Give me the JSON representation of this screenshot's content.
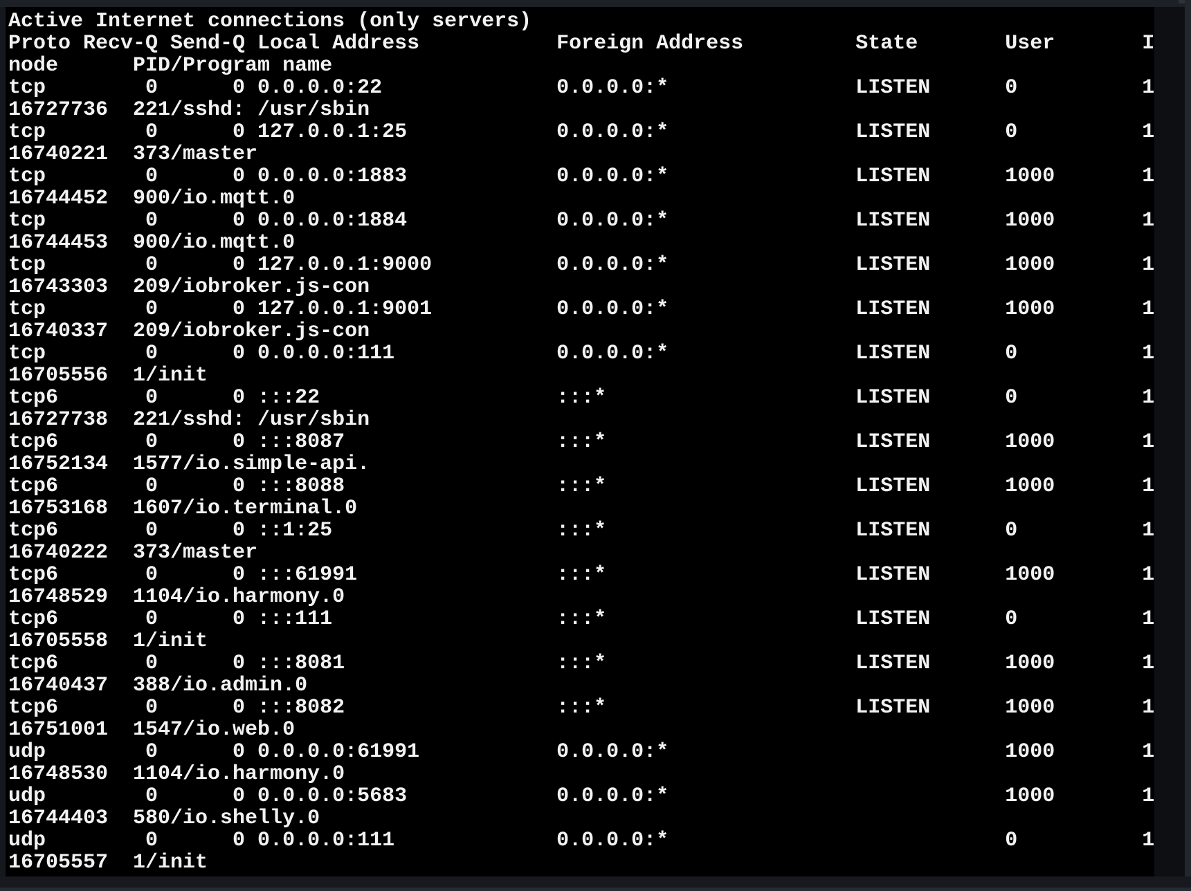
{
  "terminal": {
    "title_line": "Active Internet connections (only servers)",
    "wrap_width": 92,
    "header": {
      "proto": "Proto",
      "recv_q": "Recv-Q",
      "send_q": "Send-Q",
      "local": "Local Address",
      "foreign": "Foreign Address",
      "state": "State",
      "user": "User",
      "inode": "Inode",
      "program": "PID/Program name"
    },
    "rows": [
      {
        "proto": "tcp",
        "recv_q": "0",
        "send_q": "0",
        "local": "0.0.0.0:22",
        "foreign": "0.0.0.0:*",
        "state": "LISTEN",
        "user": "0",
        "inode": "116727736",
        "program": "221/sshd: /usr/sbin"
      },
      {
        "proto": "tcp",
        "recv_q": "0",
        "send_q": "0",
        "local": "127.0.0.1:25",
        "foreign": "0.0.0.0:*",
        "state": "LISTEN",
        "user": "0",
        "inode": "116740221",
        "program": "373/master"
      },
      {
        "proto": "tcp",
        "recv_q": "0",
        "send_q": "0",
        "local": "0.0.0.0:1883",
        "foreign": "0.0.0.0:*",
        "state": "LISTEN",
        "user": "1000",
        "inode": "116744452",
        "program": "900/io.mqtt.0"
      },
      {
        "proto": "tcp",
        "recv_q": "0",
        "send_q": "0",
        "local": "0.0.0.0:1884",
        "foreign": "0.0.0.0:*",
        "state": "LISTEN",
        "user": "1000",
        "inode": "116744453",
        "program": "900/io.mqtt.0"
      },
      {
        "proto": "tcp",
        "recv_q": "0",
        "send_q": "0",
        "local": "127.0.0.1:9000",
        "foreign": "0.0.0.0:*",
        "state": "LISTEN",
        "user": "1000",
        "inode": "116743303",
        "program": "209/iobroker.js-con"
      },
      {
        "proto": "tcp",
        "recv_q": "0",
        "send_q": "0",
        "local": "127.0.0.1:9001",
        "foreign": "0.0.0.0:*",
        "state": "LISTEN",
        "user": "1000",
        "inode": "116740337",
        "program": "209/iobroker.js-con"
      },
      {
        "proto": "tcp",
        "recv_q": "0",
        "send_q": "0",
        "local": "0.0.0.0:111",
        "foreign": "0.0.0.0:*",
        "state": "LISTEN",
        "user": "0",
        "inode": "116705556",
        "program": "1/init"
      },
      {
        "proto": "tcp6",
        "recv_q": "0",
        "send_q": "0",
        "local": ":::22",
        "foreign": ":::*",
        "state": "LISTEN",
        "user": "0",
        "inode": "116727738",
        "program": "221/sshd: /usr/sbin"
      },
      {
        "proto": "tcp6",
        "recv_q": "0",
        "send_q": "0",
        "local": ":::8087",
        "foreign": ":::*",
        "state": "LISTEN",
        "user": "1000",
        "inode": "116752134",
        "program": "1577/io.simple-api."
      },
      {
        "proto": "tcp6",
        "recv_q": "0",
        "send_q": "0",
        "local": ":::8088",
        "foreign": ":::*",
        "state": "LISTEN",
        "user": "1000",
        "inode": "116753168",
        "program": "1607/io.terminal.0"
      },
      {
        "proto": "tcp6",
        "recv_q": "0",
        "send_q": "0",
        "local": "::1:25",
        "foreign": ":::*",
        "state": "LISTEN",
        "user": "0",
        "inode": "116740222",
        "program": "373/master"
      },
      {
        "proto": "tcp6",
        "recv_q": "0",
        "send_q": "0",
        "local": ":::61991",
        "foreign": ":::*",
        "state": "LISTEN",
        "user": "1000",
        "inode": "116748529",
        "program": "1104/io.harmony.0"
      },
      {
        "proto": "tcp6",
        "recv_q": "0",
        "send_q": "0",
        "local": ":::111",
        "foreign": ":::*",
        "state": "LISTEN",
        "user": "0",
        "inode": "116705558",
        "program": "1/init"
      },
      {
        "proto": "tcp6",
        "recv_q": "0",
        "send_q": "0",
        "local": ":::8081",
        "foreign": ":::*",
        "state": "LISTEN",
        "user": "1000",
        "inode": "116740437",
        "program": "388/io.admin.0"
      },
      {
        "proto": "tcp6",
        "recv_q": "0",
        "send_q": "0",
        "local": ":::8082",
        "foreign": ":::*",
        "state": "LISTEN",
        "user": "1000",
        "inode": "116751001",
        "program": "1547/io.web.0"
      },
      {
        "proto": "udp",
        "recv_q": "0",
        "send_q": "0",
        "local": "0.0.0.0:61991",
        "foreign": "0.0.0.0:*",
        "state": "",
        "user": "1000",
        "inode": "116748530",
        "program": "1104/io.harmony.0"
      },
      {
        "proto": "udp",
        "recv_q": "0",
        "send_q": "0",
        "local": "0.0.0.0:5683",
        "foreign": "0.0.0.0:*",
        "state": "",
        "user": "1000",
        "inode": "116744403",
        "program": "580/io.shelly.0"
      },
      {
        "proto": "udp",
        "recv_q": "0",
        "send_q": "0",
        "local": "0.0.0.0:111",
        "foreign": "0.0.0.0:*",
        "state": "",
        "user": "0",
        "inode": "116705557",
        "program": "1/init"
      }
    ],
    "colors": {
      "screen_bg": "#000000",
      "text": "#f2f2f2",
      "frame": "#15181d",
      "top_bar": "#1d2127",
      "notch": "#2e333a",
      "scroll_track": "#0d0f13",
      "scroll_edge": "#22262d",
      "bottom_bar": "#17191e",
      "bottom_edge": "#262b33"
    }
  }
}
